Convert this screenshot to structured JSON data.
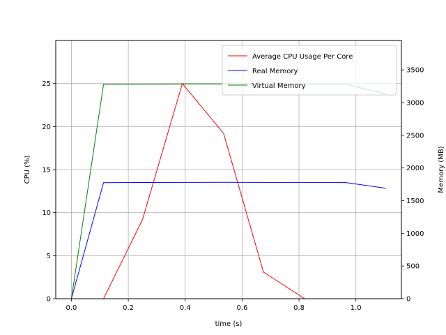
{
  "chart_data": {
    "type": "line",
    "title": "",
    "xlabel": "time (s)",
    "ylabel_left": "CPU (%)",
    "ylabel_right": "Memory (MB)",
    "xlim": [
      -0.055,
      1.16
    ],
    "ylim_left": [
      0,
      30
    ],
    "ylim_right": [
      0,
      3950
    ],
    "x_ticks": [
      0.0,
      0.2,
      0.4,
      0.6,
      0.8,
      1.0
    ],
    "x_tick_labels": [
      "0.0",
      "0.2",
      "0.4",
      "0.6",
      "0.8",
      "1.0"
    ],
    "y_left_ticks": [
      0,
      5,
      10,
      15,
      20,
      25
    ],
    "y_left_tick_labels": [
      "0",
      "5",
      "10",
      "15",
      "20",
      "25"
    ],
    "y_right_ticks": [
      0,
      500,
      1000,
      1500,
      2000,
      2500,
      3000,
      3500
    ],
    "y_right_tick_labels": [
      "0",
      "500",
      "1000",
      "1500",
      "2000",
      "2500",
      "3000",
      "3500"
    ],
    "grid": true,
    "legend_position": "top-right",
    "series": [
      {
        "name": "Average CPU Usage Per Core",
        "axis": "left",
        "color": "#ff0000",
        "x": [
          0.0,
          0.113,
          0.25,
          0.39,
          0.535,
          0.675,
          0.82,
          0.96,
          1.105
        ],
        "y": [
          0,
          0,
          9.2,
          25.0,
          19.2,
          3.1,
          0,
          0,
          0
        ]
      },
      {
        "name": "Real Memory",
        "axis": "right",
        "color": "#0000ff",
        "x": [
          0.0,
          0.113,
          0.25,
          0.39,
          0.535,
          0.675,
          0.82,
          0.96,
          1.105
        ],
        "y": [
          0,
          1775,
          1777,
          1779,
          1780,
          1779,
          1779,
          1779,
          1690
        ]
      },
      {
        "name": "Virtual Memory",
        "axis": "right",
        "color": "#008000",
        "x": [
          0.0,
          0.113,
          0.25,
          0.39,
          0.535,
          0.675,
          0.82,
          0.96,
          1.105
        ],
        "y": [
          0,
          3280,
          3282,
          3285,
          3286,
          3286,
          3286,
          3286,
          3130
        ]
      }
    ]
  }
}
